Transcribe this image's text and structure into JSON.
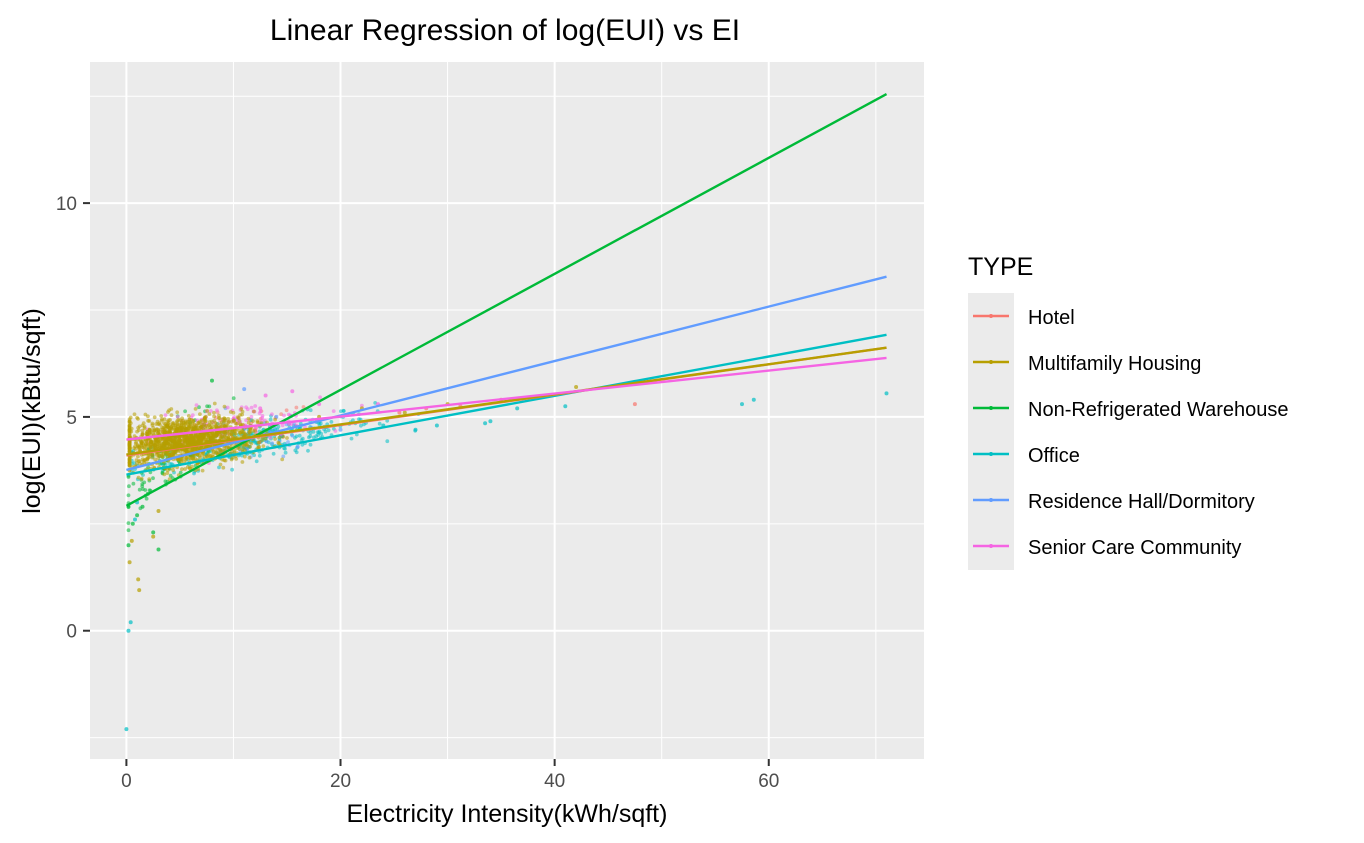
{
  "chart_data": {
    "type": "scatter",
    "title": "Linear Regression of log(EUI) vs EI",
    "xlabel": "Electricity Intensity(kWh/sqft)",
    "ylabel": "log(EUI)(kBtu/sqft)",
    "xlim": [
      -3.4,
      74.5
    ],
    "ylim": [
      -3.0,
      13.3
    ],
    "x_ticks": [
      0,
      20,
      40,
      60
    ],
    "y_ticks": [
      0,
      5,
      10
    ],
    "grid": true,
    "legend_title": "TYPE",
    "legend_position": "right",
    "series": [
      {
        "name": "Hotel",
        "color": "#F8766D",
        "fit_x": [
          0,
          71
        ],
        "fit_y": [
          4.1,
          6.62
        ],
        "points": [
          [
            47.5,
            5.3
          ],
          [
            31.2,
            5.25
          ],
          [
            28.0,
            5.2
          ],
          [
            35.0,
            5.4
          ],
          [
            25.5,
            5.1
          ],
          [
            8.5,
            4.6
          ],
          [
            12.0,
            4.7
          ]
        ]
      },
      {
        "name": "Multifamily Housing",
        "color": "#B79F00",
        "fit_x": [
          0,
          71
        ],
        "fit_y": [
          4.12,
          6.62
        ],
        "points": [
          [
            42.0,
            5.7
          ],
          [
            30.0,
            5.3
          ],
          [
            22.0,
            5.2
          ],
          [
            18.0,
            5.0
          ],
          [
            26.0,
            5.1
          ],
          [
            0.3,
            1.6
          ],
          [
            0.5,
            2.1
          ],
          [
            1.1,
            1.2
          ],
          [
            1.2,
            0.95
          ],
          [
            3.0,
            2.8
          ],
          [
            2.5,
            2.2
          ]
        ]
      },
      {
        "name": "Non-Refrigerated Warehouse",
        "color": "#00BA38",
        "fit_x": [
          0,
          71
        ],
        "fit_y": [
          2.92,
          12.55
        ],
        "points": [
          [
            0.2,
            2.0
          ],
          [
            0.6,
            2.5
          ],
          [
            1.0,
            2.7
          ],
          [
            1.5,
            2.9
          ],
          [
            2.0,
            3.2
          ],
          [
            2.5,
            2.3
          ],
          [
            3.0,
            1.9
          ],
          [
            3.5,
            3.8
          ],
          [
            8.0,
            5.85
          ],
          [
            4.0,
            4.5
          ],
          [
            5.0,
            3.9
          ],
          [
            6.0,
            4.1
          ]
        ]
      },
      {
        "name": "Office",
        "color": "#00BFC4",
        "fit_x": [
          0,
          71
        ],
        "fit_y": [
          3.65,
          6.92
        ],
        "points": [
          [
            0.0,
            -2.3
          ],
          [
            0.2,
            0.0
          ],
          [
            0.4,
            0.2
          ],
          [
            0.8,
            2.6
          ],
          [
            1.0,
            3.0
          ],
          [
            36.5,
            5.2
          ],
          [
            41.0,
            5.25
          ],
          [
            57.5,
            5.3
          ],
          [
            58.6,
            5.4
          ],
          [
            71.0,
            5.55
          ],
          [
            34.0,
            4.9
          ],
          [
            29.0,
            4.8
          ],
          [
            27.0,
            4.7
          ],
          [
            24.0,
            4.8
          ],
          [
            33.5,
            4.85
          ]
        ]
      },
      {
        "name": "Residence Hall/Dormitory",
        "color": "#619CFF",
        "fit_x": [
          0,
          71
        ],
        "fit_y": [
          3.76,
          8.28
        ],
        "points": [
          [
            11.0,
            5.65
          ],
          [
            14.0,
            5.0
          ],
          [
            16.0,
            4.3
          ],
          [
            9.0,
            4.2
          ],
          [
            20.0,
            4.7
          ],
          [
            6.0,
            4.1
          ]
        ]
      },
      {
        "name": "Senior Care Community",
        "color": "#F564E3",
        "fit_x": [
          0,
          71
        ],
        "fit_y": [
          4.47,
          6.38
        ],
        "points": [
          [
            15.5,
            5.6
          ],
          [
            12.5,
            5.2
          ],
          [
            18.0,
            5.3
          ],
          [
            10.0,
            4.9
          ],
          [
            23.5,
            5.3
          ],
          [
            13.0,
            5.5
          ]
        ]
      }
    ]
  }
}
